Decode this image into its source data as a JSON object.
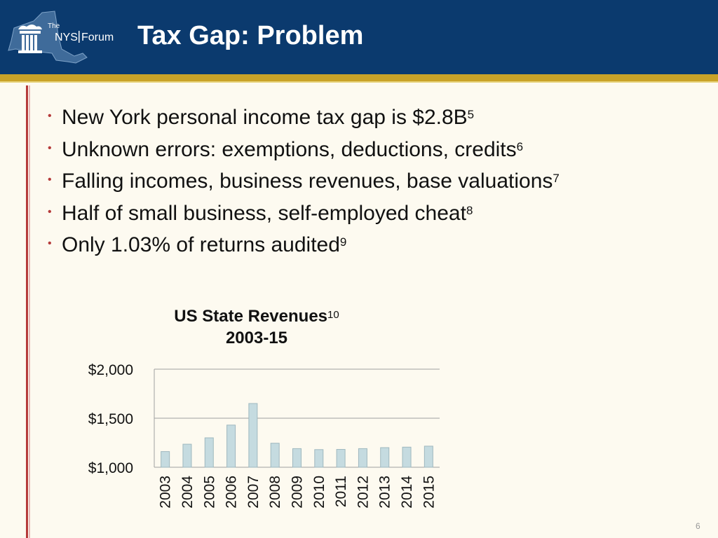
{
  "header": {
    "logo_text_small": "The",
    "logo_text_nys": "NYS",
    "logo_text_forum": "Forum",
    "title": "Tax Gap: Problem"
  },
  "bullets": [
    {
      "text": "New York personal income tax gap is $2.8B",
      "ref": "5"
    },
    {
      "text": "Unknown errors: exemptions, deductions, credits",
      "ref": "6"
    },
    {
      "text": "Falling incomes, business revenues, base valuations",
      "ref": "7"
    },
    {
      "text": "Half of small business, self-employed cheat",
      "ref": "8"
    },
    {
      "text": "Only 1.03% of returns audited",
      "ref": "9"
    }
  ],
  "bullet_symbol": "•",
  "colors": {
    "header_bg": "#0b3a6e",
    "gold": "#c9a227",
    "accent_red": "#b53a3a",
    "bar_fill": "#c5dbe0",
    "bar_stroke": "#9fb8bf"
  },
  "chart_data": {
    "type": "bar",
    "title_line1": "US State Revenues",
    "title_ref": "10",
    "title_line2": "2003-15",
    "categories": [
      "2003",
      "2004",
      "2005",
      "2006",
      "2007",
      "2008",
      "2009",
      "2010",
      "2011",
      "2012",
      "2013",
      "2014",
      "2015"
    ],
    "values": [
      1160,
      1235,
      1300,
      1430,
      1650,
      1245,
      1190,
      1180,
      1182,
      1190,
      1200,
      1205,
      1215
    ],
    "yticks": [
      "$1,000",
      "$1,500",
      "$2,000"
    ],
    "ytick_values": [
      1000,
      1500,
      2000
    ],
    "ylim": [
      1000,
      2000
    ],
    "grid": true
  },
  "page_number": "6"
}
